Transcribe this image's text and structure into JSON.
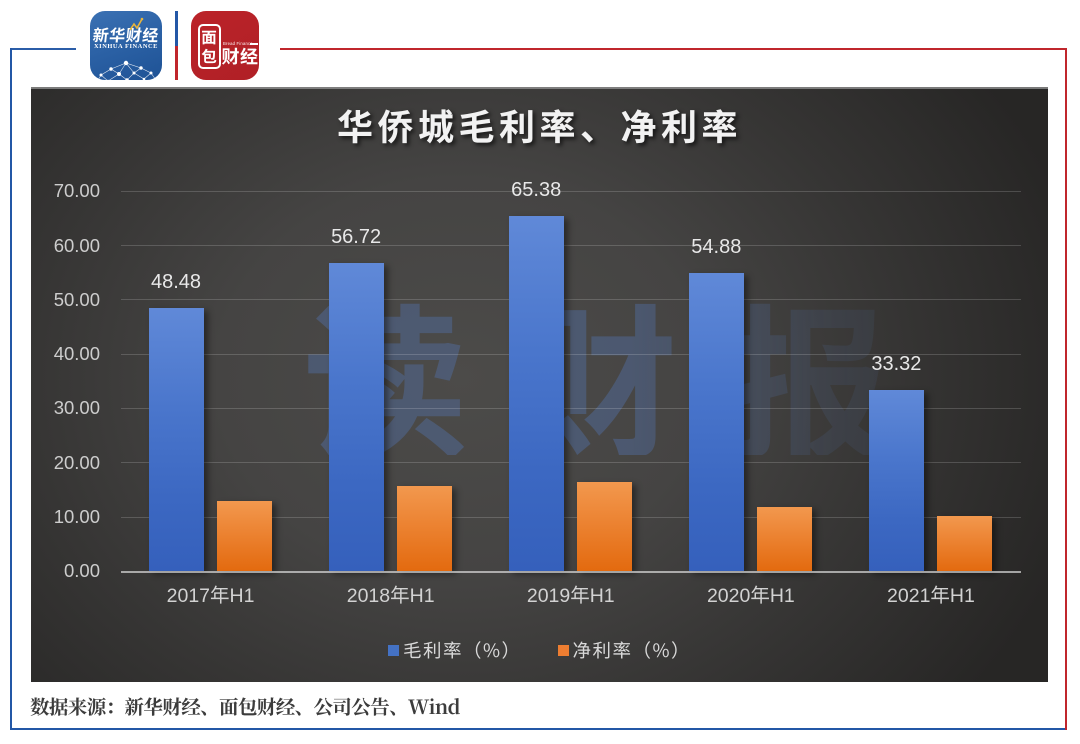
{
  "header": {
    "xinhua_logo": {
      "title_zh": "新华财经",
      "title_en": "XINHUA FINANCE"
    },
    "bread_logo": {
      "seal_char_top": "面",
      "seal_char_bottom": "包",
      "name": "财经",
      "subtitle": "Bread Finance"
    }
  },
  "footer": {
    "source_text": "数据来源：新华财经、面包财经、公司公告、Wind"
  },
  "colors": {
    "frame_blue": "#2357A6",
    "frame_red": "#C0262C",
    "series_blue": "#4472C4",
    "series_orange": "#ED7D31",
    "chart_bg_center": "#4C4B49",
    "chart_bg_edge": "#272625",
    "watermark_color": "rgba(104,122,156,0.50)"
  },
  "chart_data": {
    "type": "bar",
    "title": "华侨城毛利率、净利率",
    "categories": [
      "2017年H1",
      "2018年H1",
      "2019年H1",
      "2020年H1",
      "2021年H1"
    ],
    "series": [
      {
        "key": "gross-margin",
        "name": "毛利率（%）",
        "color": "#4472C4",
        "values": [
          48.48,
          56.72,
          65.38,
          54.88,
          33.32
        ],
        "data_labels": [
          "48.48",
          "56.72",
          "65.38",
          "54.88",
          "33.32"
        ]
      },
      {
        "key": "net-margin",
        "name": "净利率（%）",
        "color": "#ED7D31",
        "values": [
          13.0,
          15.7,
          16.5,
          11.9,
          10.2
        ],
        "data_labels": []
      }
    ],
    "ylabel": "",
    "xlabel": "",
    "ylim": [
      0,
      70
    ],
    "ytick_step": 10,
    "ytick_decimals": 2,
    "ytick_labels": [
      "0.00",
      "10.00",
      "20.00",
      "30.00",
      "40.00",
      "50.00",
      "60.00",
      "70.00"
    ],
    "grid": true,
    "legend_position": "bottom",
    "watermark": "读财报"
  }
}
